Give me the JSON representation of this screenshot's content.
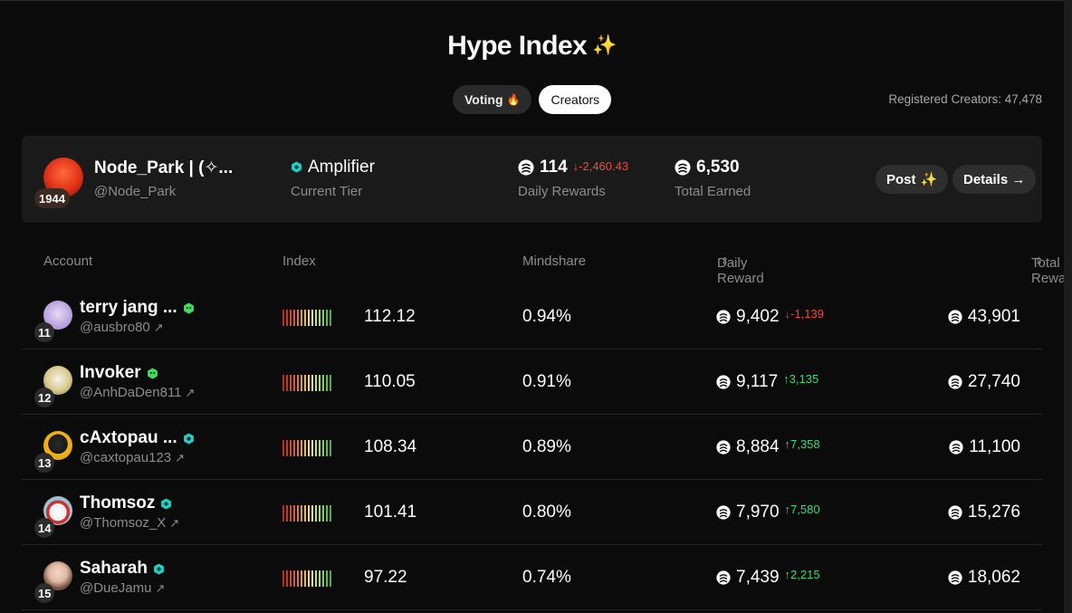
{
  "page": {
    "title": "Hype Index",
    "title_icon": "sparkle-icon",
    "registered_creators": "Registered Creators: 47,478"
  },
  "tabs": [
    {
      "label": "Voting",
      "icon": "fire-emoji",
      "emoji": "🔥",
      "active": false
    },
    {
      "label": "Creators",
      "active": true
    }
  ],
  "current_user": {
    "name": "Node_Park | (✧...",
    "handle": "@Node_Park",
    "rank": "1944",
    "tier": "Amplifier",
    "tier_label": "Current Tier",
    "daily_rewards": "114",
    "daily_delta": "↓-2,460.43",
    "daily_label": "Daily Rewards",
    "total_earned": "6,530",
    "total_label": "Total Earned",
    "post_label": "Post",
    "details_label": "Details →"
  },
  "table": {
    "headers": {
      "account": "Account",
      "index": "Index",
      "mindshare": "Mindshare",
      "daily_reward": "Daily Reward",
      "total_reward": "Total Reward"
    },
    "rows": [
      {
        "rank": "11",
        "name": "terry jang ...",
        "badge": "green",
        "handle": "@ausbro80",
        "index": "112.12",
        "mindshare": "0.94%",
        "daily": "9,402",
        "delta": "↓-1,139",
        "delta_dir": "down",
        "total": "43,901"
      },
      {
        "rank": "12",
        "name": "Invoker",
        "badge": "green",
        "handle": "@AnhDaDen811",
        "index": "110.05",
        "mindshare": "0.91%",
        "daily": "9,117",
        "delta": "↑3,135",
        "delta_dir": "up",
        "total": "27,740"
      },
      {
        "rank": "13",
        "name": "cAxtopau ...",
        "badge": "teal",
        "handle": "@caxtopau123",
        "index": "108.34",
        "mindshare": "0.89%",
        "daily": "8,884",
        "delta": "↑7,358",
        "delta_dir": "up",
        "total": "11,100"
      },
      {
        "rank": "14",
        "name": "Thomsoz",
        "badge": "teal",
        "handle": "@Thomsoz_X",
        "index": "101.41",
        "mindshare": "0.80%",
        "daily": "7,970",
        "delta": "↑7,580",
        "delta_dir": "up",
        "total": "15,276"
      },
      {
        "rank": "15",
        "name": "Saharah",
        "badge": "teal",
        "handle": "@DueJamu",
        "index": "97.22",
        "mindshare": "0.74%",
        "daily": "7,439",
        "delta": "↑2,215",
        "delta_dir": "up",
        "total": "18,062"
      }
    ]
  },
  "colors": {
    "accent_purple": "#b77cf2",
    "badge_green": "#3ee05a",
    "badge_teal": "#1fd1c7",
    "delta_down": "#f04a3a",
    "delta_up": "#3ed67a"
  }
}
